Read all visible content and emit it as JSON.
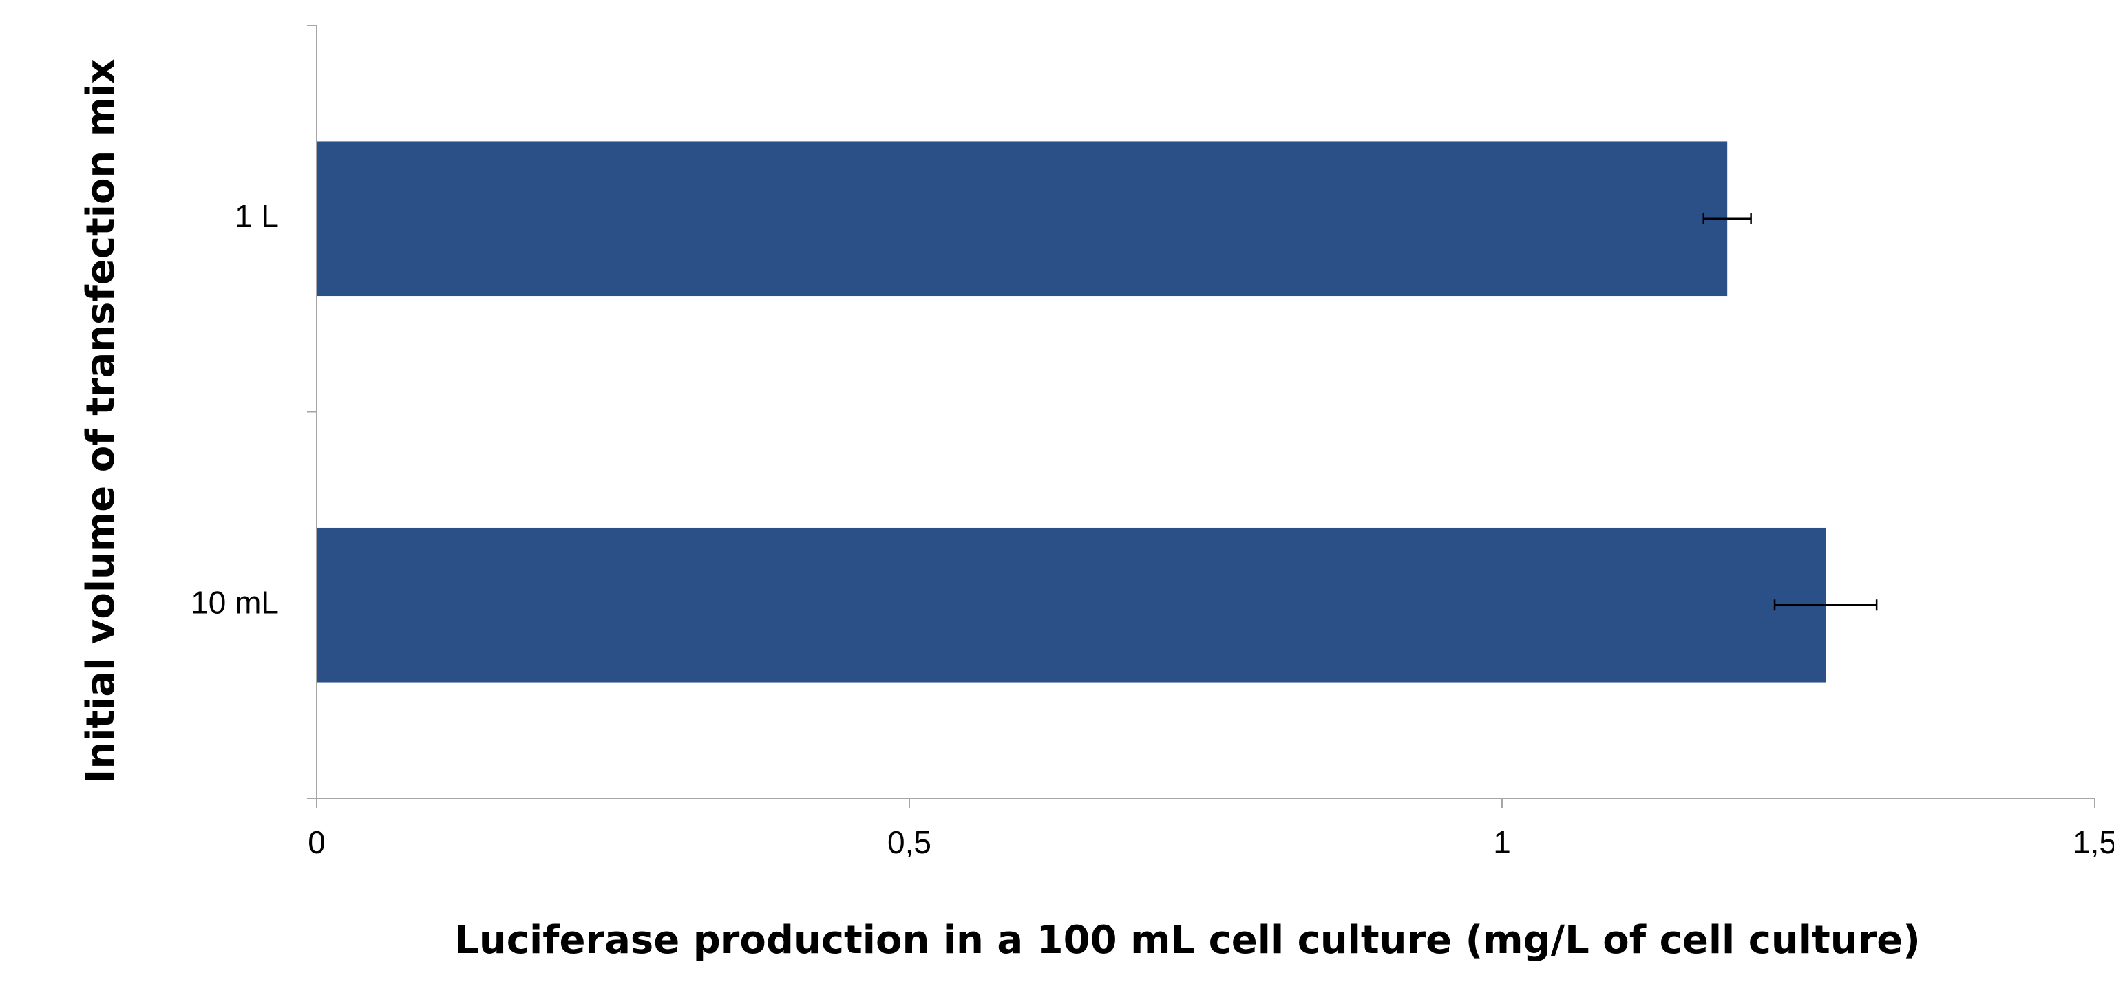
{
  "chart_data": {
    "type": "bar",
    "orientation": "horizontal",
    "title": "",
    "xlabel": "Luciferase production in a 100 mL cell culture (mg/L of cell culture)",
    "ylabel": "Initial volume of transfection mix",
    "categories": [
      "1 L",
      "10 mL"
    ],
    "series": [
      {
        "values": [
          1.19,
          1.273
        ],
        "error": [
          0.02,
          0.043
        ],
        "color": "#2b5087"
      }
    ],
    "xlim": [
      0,
      1.5
    ],
    "xticks": [
      0,
      0.5,
      1,
      1.5
    ],
    "xtick_labels": [
      "0",
      "0,5",
      "1",
      "1,5"
    ],
    "grid": false,
    "legend": "none",
    "axis_color": "#a6a6a6",
    "error_bar_color": "#000000"
  }
}
